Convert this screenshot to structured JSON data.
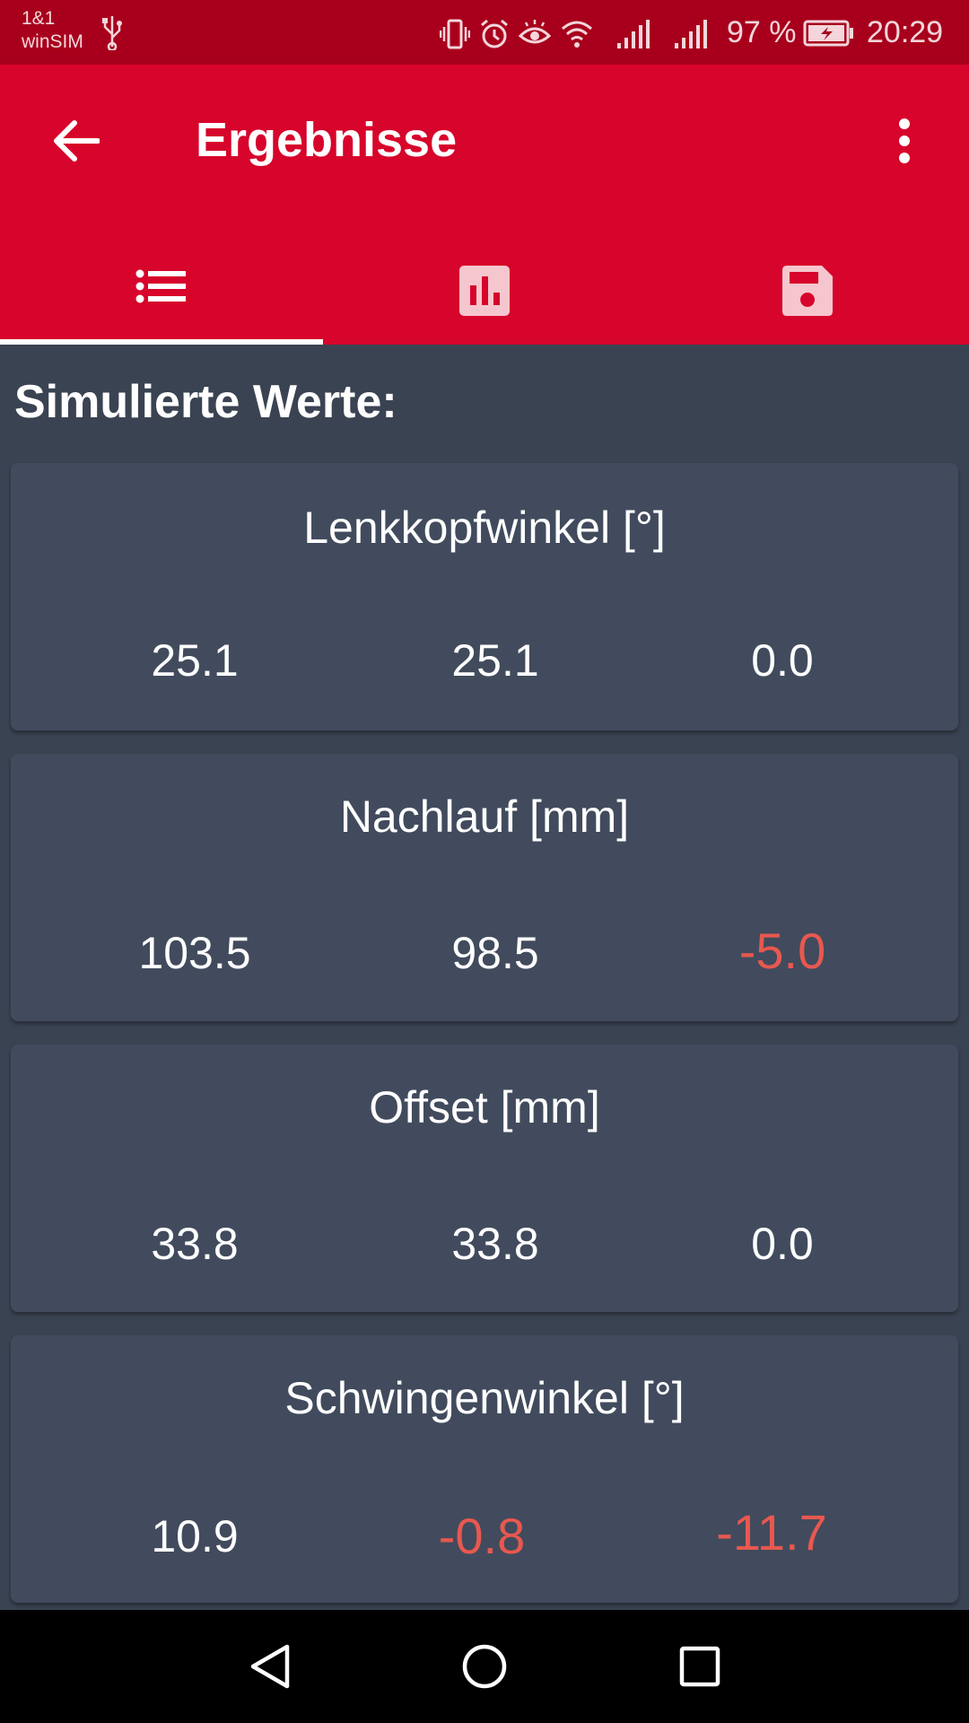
{
  "status_bar": {
    "carrier_line1": "1&1",
    "carrier_line2": "winSIM",
    "battery": "97 %",
    "time": "20:29",
    "icons": [
      "usb-icon",
      "vibrate-icon",
      "alarm-icon",
      "eye-comfort-icon",
      "wifi-icon",
      "signal-icon",
      "signal-icon-2",
      "battery-charging-icon"
    ]
  },
  "app_bar": {
    "title": "Ergebnisse",
    "back_icon": "arrow-back-icon",
    "menu_icon": "more-vert-icon",
    "color": "#d7042b"
  },
  "tabs": [
    {
      "icon": "list-icon",
      "selected": true
    },
    {
      "icon": "bar-chart-icon",
      "selected": false
    },
    {
      "icon": "save-icon",
      "selected": false
    }
  ],
  "section_title": "Simulierte Werte:",
  "cards": [
    {
      "title": "Lenkkopfwinkel [°]",
      "values": [
        "25.1",
        "25.1",
        "0.0"
      ]
    },
    {
      "title": "Nachlauf [mm]",
      "values": [
        "103.5",
        "98.5",
        "-5.0"
      ]
    },
    {
      "title": "Offset [mm]",
      "values": [
        "33.8",
        "33.8",
        "0.0"
      ]
    },
    {
      "title": "Schwingenwinkel [°]",
      "values": [
        "10.9",
        "-0.8",
        "-11.7"
      ]
    }
  ],
  "colors": {
    "background": "#3a4352",
    "card": "#414b5d",
    "negative": "#e8584f"
  },
  "nav_bar": {
    "icons": [
      "back-triangle-icon",
      "home-circle-icon",
      "recents-square-icon"
    ]
  }
}
